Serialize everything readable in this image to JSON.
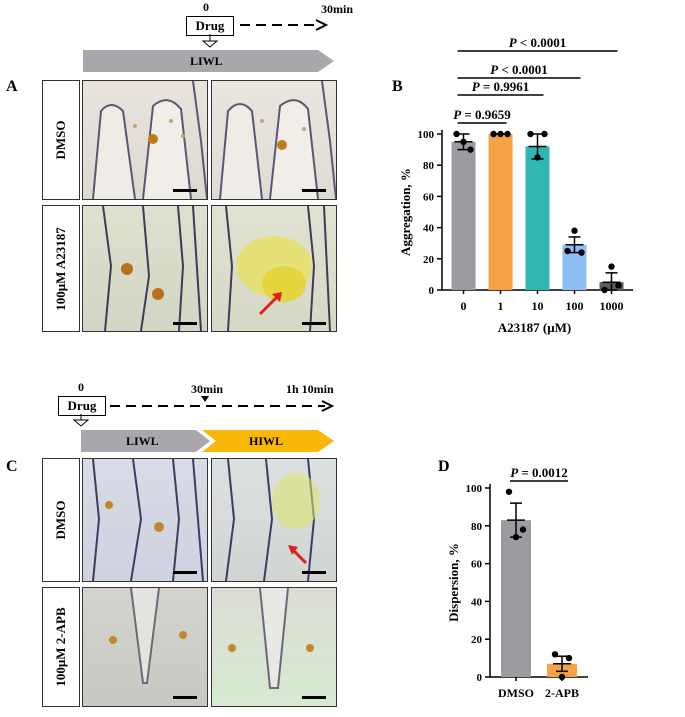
{
  "panels": {
    "A": {
      "letter": "A",
      "timeline": {
        "start": "0",
        "end": "30min",
        "drug": "Drug",
        "bar": "LIWL"
      },
      "rows": [
        "DMSO",
        "100μM A23187"
      ]
    },
    "B": {
      "letter": "B"
    },
    "C": {
      "letter": "C",
      "timeline": {
        "start": "0",
        "mid": "30min",
        "end": "1h 10min",
        "drug": "Drug",
        "bar1": "LIWL",
        "bar2": "HIWL"
      },
      "rows": [
        "DMSO",
        "100μM 2-APB"
      ]
    },
    "D": {
      "letter": "D"
    }
  },
  "colors": {
    "grey": "#9d9ba1",
    "orange": "#f7a146",
    "teal": "#2fb7b4",
    "blue": "#8ebef3",
    "dark": "#5b5b5b",
    "hiwl": "#f9b807",
    "liwl": "#a9a7ab",
    "arrow": "#e02020"
  },
  "chart_data": [
    {
      "type": "bar",
      "panel": "B",
      "categories": [
        "0",
        "1",
        "10",
        "100",
        "1000"
      ],
      "values": [
        95,
        100,
        92,
        29,
        5
      ],
      "errors": [
        5,
        0,
        8,
        5,
        6
      ],
      "points": [
        [
          100,
          90,
          95
        ],
        [
          100,
          100,
          100
        ],
        [
          100,
          100,
          85
        ],
        [
          25,
          24,
          38
        ],
        [
          0,
          3,
          15
        ]
      ],
      "xlabel": "A23187 (μM)",
      "ylabel": "Aggregation, %",
      "ylim": [
        0,
        100
      ],
      "yticks": [
        "0",
        "20",
        "40",
        "60",
        "80",
        "100"
      ],
      "annotations": [
        {
          "text": "P = 0.9659",
          "from": "0",
          "to": "1"
        },
        {
          "text": "P = 0.9961",
          "from": "0",
          "to": "10"
        },
        {
          "text": "P < 0.0001",
          "from": "0",
          "to": "100"
        },
        {
          "text": "P < 0.0001",
          "from": "0",
          "to": "1000"
        }
      ]
    },
    {
      "type": "bar",
      "panel": "D",
      "categories": [
        "DMSO",
        "2-APB"
      ],
      "values": [
        83,
        7
      ],
      "errors": [
        9,
        4
      ],
      "points": [
        [
          98,
          78,
          74
        ],
        [
          12,
          10,
          0
        ]
      ],
      "ylabel": "Dispersion, %",
      "ylim": [
        0,
        100
      ],
      "yticks": [
        "0",
        "20",
        "40",
        "60",
        "80",
        "100"
      ],
      "annotations": [
        {
          "text": "P = 0.0012",
          "from": "DMSO",
          "to": "2-APB"
        }
      ]
    }
  ]
}
